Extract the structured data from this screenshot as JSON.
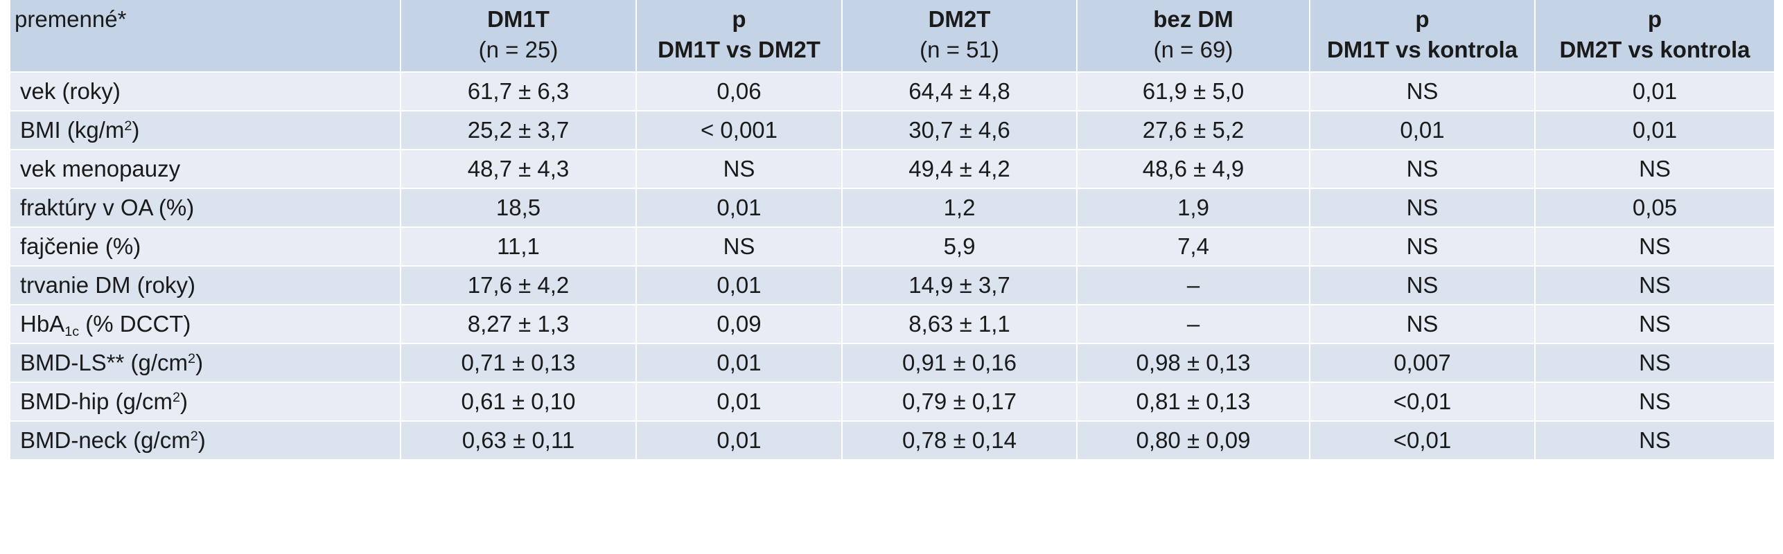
{
  "header": {
    "col0": "premenné*",
    "col1": {
      "title": "DM1T",
      "sub": "(n = 25)"
    },
    "col2": {
      "title": "p",
      "sub": "DM1T vs DM2T"
    },
    "col3": {
      "title": "DM2T",
      "sub": "(n = 51)"
    },
    "col4": {
      "title": "bez DM",
      "sub": "(n = 69)"
    },
    "col5": {
      "title": "p",
      "sub": "DM1T vs kontrola"
    },
    "col6": {
      "title": "p",
      "sub": "DM2T vs kontrola"
    }
  },
  "rows": [
    {
      "label": "vek (roky)",
      "dm1t": "61,7 ± 6,3",
      "p12": "0,06",
      "dm2t": "64,4 ± 4,8",
      "bezdm": "61,9 ± 5,0",
      "p1k": "NS",
      "p2k": "0,01"
    },
    {
      "label_main": "BMI (kg/m",
      "label_sup": "2",
      "label_end": ")",
      "dm1t": "25,2 ± 3,7",
      "p12": "< 0,001",
      "dm2t": "30,7 ± 4,6",
      "bezdm": "27,6 ± 5,2",
      "p1k": "0,01",
      "p2k": "0,01"
    },
    {
      "label": "vek menopauzy",
      "dm1t": "48,7 ± 4,3",
      "p12": "NS",
      "dm2t": "49,4 ± 4,2",
      "bezdm": "48,6 ± 4,9",
      "p1k": "NS",
      "p2k": "NS"
    },
    {
      "label": "fraktúry v OA (%)",
      "dm1t": "18,5",
      "p12": "0,01",
      "dm2t": "1,2",
      "bezdm": "1,9",
      "p1k": "NS",
      "p2k": "0,05"
    },
    {
      "label": "fajčenie (%)",
      "dm1t": "11,1",
      "p12": "NS",
      "dm2t": "5,9",
      "bezdm": "7,4",
      "p1k": "NS",
      "p2k": "NS"
    },
    {
      "label": "trvanie DM (roky)",
      "dm1t": "17,6 ± 4,2",
      "p12": "0,01",
      "dm2t": "14,9 ± 3,7",
      "bezdm": "–",
      "p1k": "NS",
      "p2k": "NS"
    },
    {
      "label_main": "HbA",
      "label_sub": "1c",
      "label_end": " (% DCCT)",
      "dm1t": "8,27 ± 1,3",
      "p12": "0,09",
      "dm2t": "8,63 ± 1,1",
      "bezdm": "–",
      "p1k": "NS",
      "p2k": "NS"
    },
    {
      "label_main": "BMD-LS** (g/cm",
      "label_sup": "2",
      "label_end": ")",
      "dm1t": "0,71 ± 0,13",
      "p12": "0,01",
      "dm2t": "0,91 ± 0,16",
      "bezdm": "0,98 ± 0,13",
      "p1k": "0,007",
      "p2k": "NS"
    },
    {
      "label_main": "BMD-hip (g/cm",
      "label_sup": "2",
      "label_end": ")",
      "dm1t": "0,61 ± 0,10",
      "p12": "0,01",
      "dm2t": "0,79 ± 0,17",
      "bezdm": "0,81 ± 0,13",
      "p1k": "<0,01",
      "p2k": "NS"
    },
    {
      "label_main": "BMD-neck (g/cm",
      "label_sup": "2",
      "label_end": ")",
      "dm1t": "0,63 ± 0,11",
      "p12": "0,01",
      "dm2t": "0,78 ± 0,14",
      "bezdm": "0,80 ± 0,09",
      "p1k": "<0,01",
      "p2k": "NS"
    }
  ]
}
